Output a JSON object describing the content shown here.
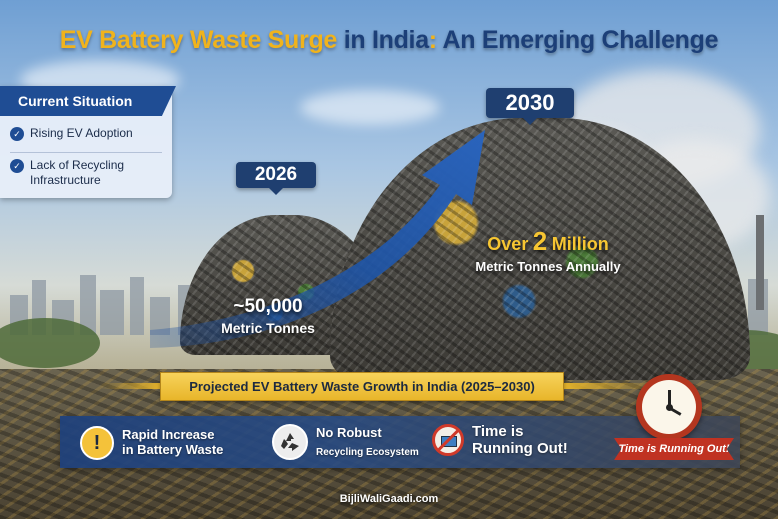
{
  "title": {
    "part1": "EV Battery Waste Surge",
    "part2": " in India",
    "part3": ":",
    "part4": " An Emerging Challenge"
  },
  "current_situation": {
    "heading": "Current Situation",
    "items": [
      {
        "label": "Rising EV Adoption"
      },
      {
        "label": "Lack of Recycling Infrastructure"
      }
    ]
  },
  "year_2026": {
    "label": "2026",
    "value": "~50,000",
    "unit": "Metric Tonnes"
  },
  "year_2030": {
    "label": "2030",
    "prefix": "Over",
    "value": "2",
    "suffix": "Million",
    "unit": "Metric Tonnes Annually"
  },
  "banner": {
    "label": "Projected EV Battery Waste Growth in India (2025–2030)"
  },
  "features": [
    {
      "icon": "warning-icon",
      "label_line1": "Rapid Increase",
      "label_line2": "in Battery Waste"
    },
    {
      "icon": "recycle-icon",
      "label_line1": "No Robust",
      "label_line2": "Recycling Ecosystem"
    },
    {
      "icon": "no-battery-icon",
      "label_line1": "Time is",
      "label_line2": "Running Out!"
    }
  ],
  "clock_ribbon": {
    "label": "Time is Running Out!"
  },
  "footer": {
    "source": "BijliWaliGaadi.com"
  },
  "colors": {
    "accent_yellow": "#f0b31c",
    "navy": "#1f3f70",
    "blue_panel": "#1f4d94",
    "alert_red": "#c03222"
  }
}
